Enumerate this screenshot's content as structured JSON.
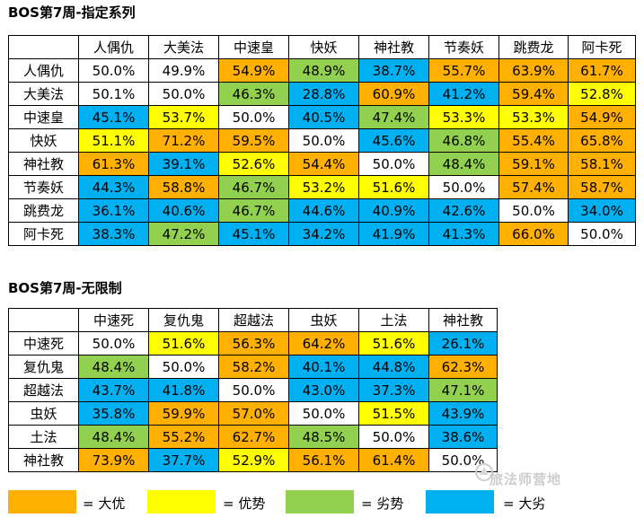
{
  "colors": {
    "orange": "#ffb000",
    "yellow": "#ffff00",
    "green": "#92d050",
    "blue": "#00b0f0",
    "white": "#ffffff"
  },
  "section1": {
    "title": "BOS第7周-指定系列",
    "columns": [
      "人偶仇",
      "大美法",
      "中速皇",
      "快妖",
      "神社教",
      "节奏妖",
      "跳费龙",
      "阿卡死"
    ],
    "rows": [
      {
        "name": "人偶仇",
        "cells": [
          {
            "v": "50.0%",
            "c": "wh"
          },
          {
            "v": "49.9%",
            "c": "wh"
          },
          {
            "v": "54.9%",
            "c": "or"
          },
          {
            "v": "48.9%",
            "c": "gr"
          },
          {
            "v": "38.7%",
            "c": "bl"
          },
          {
            "v": "55.7%",
            "c": "or"
          },
          {
            "v": "63.9%",
            "c": "or"
          },
          {
            "v": "61.7%",
            "c": "or"
          }
        ]
      },
      {
        "name": "大美法",
        "cells": [
          {
            "v": "50.1%",
            "c": "wh"
          },
          {
            "v": "50.0%",
            "c": "wh"
          },
          {
            "v": "46.3%",
            "c": "gr"
          },
          {
            "v": "28.8%",
            "c": "bl"
          },
          {
            "v": "60.9%",
            "c": "or"
          },
          {
            "v": "41.2%",
            "c": "bl"
          },
          {
            "v": "59.4%",
            "c": "or"
          },
          {
            "v": "52.8%",
            "c": "ye"
          }
        ]
      },
      {
        "name": "中速皇",
        "cells": [
          {
            "v": "45.1%",
            "c": "bl"
          },
          {
            "v": "53.7%",
            "c": "ye"
          },
          {
            "v": "50.0%",
            "c": "wh"
          },
          {
            "v": "40.5%",
            "c": "bl"
          },
          {
            "v": "47.4%",
            "c": "gr"
          },
          {
            "v": "53.3%",
            "c": "ye"
          },
          {
            "v": "53.3%",
            "c": "ye"
          },
          {
            "v": "54.9%",
            "c": "or"
          }
        ]
      },
      {
        "name": "快妖",
        "cells": [
          {
            "v": "51.1%",
            "c": "ye"
          },
          {
            "v": "71.2%",
            "c": "or"
          },
          {
            "v": "59.5%",
            "c": "or"
          },
          {
            "v": "50.0%",
            "c": "wh"
          },
          {
            "v": "45.6%",
            "c": "bl"
          },
          {
            "v": "46.8%",
            "c": "gr"
          },
          {
            "v": "55.4%",
            "c": "or"
          },
          {
            "v": "65.8%",
            "c": "or"
          }
        ]
      },
      {
        "name": "神社教",
        "cells": [
          {
            "v": "61.3%",
            "c": "or"
          },
          {
            "v": "39.1%",
            "c": "bl"
          },
          {
            "v": "52.6%",
            "c": "ye"
          },
          {
            "v": "54.4%",
            "c": "or"
          },
          {
            "v": "50.0%",
            "c": "wh"
          },
          {
            "v": "48.4%",
            "c": "gr"
          },
          {
            "v": "59.1%",
            "c": "or"
          },
          {
            "v": "58.1%",
            "c": "or"
          }
        ]
      },
      {
        "name": "节奏妖",
        "cells": [
          {
            "v": "44.3%",
            "c": "bl"
          },
          {
            "v": "58.8%",
            "c": "or"
          },
          {
            "v": "46.7%",
            "c": "gr"
          },
          {
            "v": "53.2%",
            "c": "ye"
          },
          {
            "v": "51.6%",
            "c": "ye"
          },
          {
            "v": "50.0%",
            "c": "wh"
          },
          {
            "v": "57.4%",
            "c": "or"
          },
          {
            "v": "58.7%",
            "c": "or"
          }
        ]
      },
      {
        "name": "跳费龙",
        "cells": [
          {
            "v": "36.1%",
            "c": "bl"
          },
          {
            "v": "40.6%",
            "c": "bl"
          },
          {
            "v": "46.7%",
            "c": "gr"
          },
          {
            "v": "44.6%",
            "c": "bl"
          },
          {
            "v": "40.9%",
            "c": "bl"
          },
          {
            "v": "42.6%",
            "c": "bl"
          },
          {
            "v": "50.0%",
            "c": "wh"
          },
          {
            "v": "34.0%",
            "c": "bl"
          }
        ]
      },
      {
        "name": "阿卡死",
        "cells": [
          {
            "v": "38.3%",
            "c": "bl"
          },
          {
            "v": "47.2%",
            "c": "gr"
          },
          {
            "v": "45.1%",
            "c": "bl"
          },
          {
            "v": "34.2%",
            "c": "bl"
          },
          {
            "v": "41.9%",
            "c": "bl"
          },
          {
            "v": "41.3%",
            "c": "bl"
          },
          {
            "v": "66.0%",
            "c": "or"
          },
          {
            "v": "50.0%",
            "c": "wh"
          }
        ]
      }
    ]
  },
  "section2": {
    "title": "BOS第7周-无限制",
    "columns": [
      "中速死",
      "复仇鬼",
      "超越法",
      "虫妖",
      "土法",
      "神社教"
    ],
    "rows": [
      {
        "name": "中速死",
        "cells": [
          {
            "v": "50.0%",
            "c": "wh"
          },
          {
            "v": "51.6%",
            "c": "ye"
          },
          {
            "v": "56.3%",
            "c": "or"
          },
          {
            "v": "64.2%",
            "c": "or"
          },
          {
            "v": "51.6%",
            "c": "ye"
          },
          {
            "v": "26.1%",
            "c": "bl"
          }
        ]
      },
      {
        "name": "复仇鬼",
        "cells": [
          {
            "v": "48.4%",
            "c": "gr"
          },
          {
            "v": "50.0%",
            "c": "wh"
          },
          {
            "v": "58.2%",
            "c": "or"
          },
          {
            "v": "40.1%",
            "c": "bl"
          },
          {
            "v": "44.8%",
            "c": "bl"
          },
          {
            "v": "62.3%",
            "c": "or"
          }
        ]
      },
      {
        "name": "超越法",
        "cells": [
          {
            "v": "43.7%",
            "c": "bl"
          },
          {
            "v": "41.8%",
            "c": "bl"
          },
          {
            "v": "50.0%",
            "c": "wh"
          },
          {
            "v": "43.0%",
            "c": "bl"
          },
          {
            "v": "37.3%",
            "c": "bl"
          },
          {
            "v": "47.1%",
            "c": "gr"
          }
        ]
      },
      {
        "name": "虫妖",
        "cells": [
          {
            "v": "35.8%",
            "c": "bl"
          },
          {
            "v": "59.9%",
            "c": "or"
          },
          {
            "v": "57.0%",
            "c": "or"
          },
          {
            "v": "50.0%",
            "c": "wh"
          },
          {
            "v": "51.5%",
            "c": "ye"
          },
          {
            "v": "43.9%",
            "c": "bl"
          }
        ]
      },
      {
        "name": "土法",
        "cells": [
          {
            "v": "48.4%",
            "c": "gr"
          },
          {
            "v": "55.2%",
            "c": "or"
          },
          {
            "v": "62.7%",
            "c": "or"
          },
          {
            "v": "48.5%",
            "c": "gr"
          },
          {
            "v": "50.0%",
            "c": "wh"
          },
          {
            "v": "38.6%",
            "c": "bl"
          }
        ]
      },
      {
        "name": "神社教",
        "cells": [
          {
            "v": "73.9%",
            "c": "or"
          },
          {
            "v": "37.7%",
            "c": "bl"
          },
          {
            "v": "52.9%",
            "c": "ye"
          },
          {
            "v": "56.1%",
            "c": "or"
          },
          {
            "v": "61.4%",
            "c": "or"
          },
          {
            "v": "50.0%",
            "c": "wh"
          }
        ]
      }
    ]
  },
  "legend": [
    {
      "label": "= 大优",
      "color": "or"
    },
    {
      "label": "= 优势",
      "color": "ye"
    },
    {
      "label": "= 劣势",
      "color": "gr"
    },
    {
      "label": "= 大劣",
      "color": "bl"
    }
  ],
  "watermark": "旅法师营地"
}
